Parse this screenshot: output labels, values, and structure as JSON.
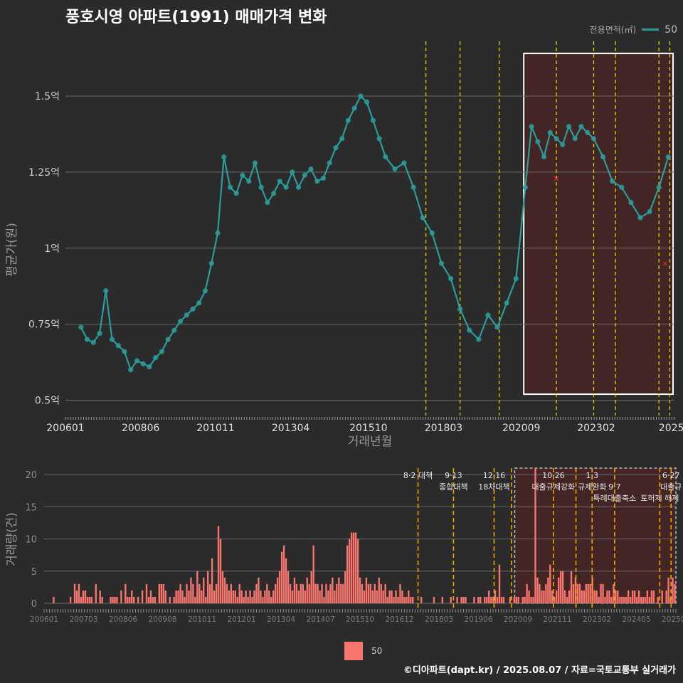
{
  "title": "풍호시영 아파트(1991) 매매가격 변화",
  "legend_top": {
    "title": "전용면적(㎡)",
    "value": "50"
  },
  "legend_bottom": {
    "value": "50"
  },
  "footer": "©디아파트(dapt.kr) / 2025.08.07 / 자료=국토교통부 실거래가",
  "colors": {
    "background": "#2b2b2b",
    "price": "#2a9d9b",
    "volume": "#f8766d",
    "policy_line": "#e6cf00",
    "policy_line_bottom": "#f0a500",
    "highlight_fill": "#5a2020",
    "grid": "#6a6a6a"
  },
  "chart_data": [
    {
      "type": "line",
      "ylabel": "평균가(원)",
      "xlabel": "거래년월",
      "ylim": [
        0.45,
        1.68
      ],
      "xlim": [
        2006.0,
        2025.6
      ],
      "yticks": [
        {
          "value": 0.5,
          "label": "0.5억"
        },
        {
          "value": 0.75,
          "label": "0.75억"
        },
        {
          "value": 1.0,
          "label": "1억"
        },
        {
          "value": 1.25,
          "label": "1.25억"
        },
        {
          "value": 1.5,
          "label": "1.5억"
        }
      ],
      "xticks": [
        {
          "value": 2006.0,
          "label": "200601"
        },
        {
          "value": 2008.42,
          "label": "200806"
        },
        {
          "value": 2010.83,
          "label": "201011"
        },
        {
          "value": 2013.25,
          "label": "201304"
        },
        {
          "value": 2015.75,
          "label": "201510"
        },
        {
          "value": 2018.17,
          "label": "201803"
        },
        {
          "value": 2020.67,
          "label": "202009"
        },
        {
          "value": 2023.08,
          "label": "202302"
        },
        {
          "value": 2025.5,
          "label": "2025"
        }
      ],
      "series": [
        {
          "name": "50",
          "x": [
            2006.5,
            2006.7,
            2006.9,
            2007.1,
            2007.3,
            2007.5,
            2007.7,
            2007.9,
            2008.1,
            2008.3,
            2008.5,
            2008.7,
            2008.9,
            2009.1,
            2009.3,
            2009.5,
            2009.7,
            2009.9,
            2010.1,
            2010.3,
            2010.5,
            2010.7,
            2010.9,
            2011.1,
            2011.3,
            2011.5,
            2011.7,
            2011.9,
            2012.1,
            2012.3,
            2012.5,
            2012.7,
            2012.9,
            2013.1,
            2013.3,
            2013.5,
            2013.7,
            2013.9,
            2014.1,
            2014.3,
            2014.5,
            2014.7,
            2014.9,
            2015.1,
            2015.3,
            2015.5,
            2015.7,
            2015.9,
            2016.1,
            2016.3,
            2016.6,
            2016.9,
            2017.2,
            2017.5,
            2017.8,
            2018.1,
            2018.4,
            2018.7,
            2019.0,
            2019.3,
            2019.6,
            2019.9,
            2020.2,
            2020.5,
            2020.8,
            2021.0,
            2021.2,
            2021.4,
            2021.6,
            2021.8,
            2022.0,
            2022.2,
            2022.4,
            2022.6,
            2022.8,
            2023.0,
            2023.3,
            2023.6,
            2023.9,
            2024.2,
            2024.5,
            2024.8,
            2025.1,
            2025.4
          ],
          "values": [
            0.74,
            0.7,
            0.69,
            0.72,
            0.86,
            0.7,
            0.68,
            0.66,
            0.6,
            0.63,
            0.62,
            0.61,
            0.64,
            0.66,
            0.7,
            0.73,
            0.76,
            0.78,
            0.8,
            0.82,
            0.86,
            0.95,
            1.05,
            1.3,
            1.2,
            1.18,
            1.24,
            1.22,
            1.28,
            1.2,
            1.15,
            1.18,
            1.22,
            1.2,
            1.25,
            1.2,
            1.24,
            1.26,
            1.22,
            1.23,
            1.28,
            1.33,
            1.36,
            1.42,
            1.46,
            1.5,
            1.48,
            1.42,
            1.36,
            1.3,
            1.26,
            1.28,
            1.2,
            1.1,
            1.05,
            0.95,
            0.9,
            0.8,
            0.73,
            0.7,
            0.78,
            0.74,
            0.82,
            0.9,
            1.2,
            1.4,
            1.35,
            1.3,
            1.38,
            1.36,
            1.34,
            1.4,
            1.36,
            1.4,
            1.38,
            1.36,
            1.3,
            1.22,
            1.2,
            1.15,
            1.1,
            1.12,
            1.2,
            1.3
          ]
        }
      ],
      "markers": [
        {
          "x": 2021.8,
          "value": 1.23
        },
        {
          "x": 2025.3,
          "value": 0.95
        }
      ],
      "policy_lines": [
        2017.6,
        2018.7,
        2019.96,
        2021.8,
        2023.0,
        2023.7,
        2025.1,
        2025.45
      ],
      "highlight_range": {
        "x": [
          2020.75,
          2025.6
        ],
        "y": [
          0.52,
          1.64
        ]
      }
    },
    {
      "type": "bar",
      "ylabel": "거래량(건)",
      "ylim": [
        0,
        21
      ],
      "yticks": [
        0,
        5,
        10,
        15,
        20
      ],
      "xticks": [
        "200601",
        "200703",
        "200806",
        "200908",
        "201011",
        "201201",
        "201304",
        "201407",
        "201510",
        "201612",
        "201803",
        "201906",
        "202009",
        "202111",
        "202302",
        "202405",
        "202507"
      ],
      "series": [
        {
          "name": "50",
          "values": [
            0,
            0,
            0,
            0,
            1,
            0,
            0,
            0,
            0,
            0,
            0,
            0,
            1,
            0,
            3,
            2,
            3,
            1,
            2,
            2,
            1,
            1,
            1,
            0,
            3,
            0,
            2,
            1,
            0,
            0,
            0,
            1,
            1,
            1,
            1,
            0,
            2,
            0,
            3,
            1,
            1,
            2,
            1,
            0,
            1,
            0,
            2,
            0,
            3,
            1,
            2,
            1,
            1,
            0,
            3,
            3,
            3,
            2,
            0,
            1,
            0,
            1,
            2,
            2,
            3,
            2,
            1,
            3,
            2,
            4,
            3,
            1,
            5,
            3,
            2,
            4,
            1,
            5,
            3,
            7,
            2,
            3,
            12,
            10,
            5,
            4,
            3,
            2,
            3,
            2,
            2,
            1,
            3,
            2,
            1,
            2,
            1,
            2,
            1,
            2,
            3,
            4,
            2,
            1,
            2,
            3,
            2,
            1,
            2,
            3,
            4,
            5,
            8,
            9,
            7,
            5,
            3,
            2,
            4,
            3,
            2,
            3,
            3,
            2,
            4,
            3,
            5,
            9,
            3,
            3,
            2,
            3,
            1,
            3,
            2,
            3,
            4,
            2,
            3,
            4,
            3,
            3,
            5,
            9,
            10,
            11,
            11,
            11,
            10,
            4,
            3,
            2,
            4,
            3,
            3,
            2,
            3,
            2,
            4,
            3,
            2,
            3,
            1,
            2,
            2,
            1,
            2,
            1,
            3,
            2,
            1,
            1,
            2,
            1,
            1,
            0,
            0,
            0,
            1,
            0,
            0,
            0,
            0,
            0,
            1,
            0,
            0,
            0,
            1,
            0,
            0,
            0,
            1,
            0,
            0,
            1,
            0,
            1,
            1,
            1,
            0,
            0,
            0,
            1,
            0,
            1,
            1,
            0,
            1,
            1,
            2,
            1,
            1,
            2,
            1,
            6,
            1,
            1,
            0,
            0,
            1,
            0,
            1,
            1,
            1,
            0,
            1,
            1,
            3,
            2,
            1,
            1,
            21,
            4,
            3,
            2,
            2,
            3,
            4,
            6,
            2,
            1,
            2,
            4,
            5,
            5,
            2,
            1,
            2,
            5,
            3,
            4,
            3,
            3,
            2,
            2,
            3,
            3,
            3,
            4,
            2,
            2,
            1,
            3,
            3,
            1,
            2,
            2,
            1,
            3,
            2,
            2,
            1,
            1,
            1,
            1,
            2,
            1,
            2,
            2,
            1,
            2,
            1,
            1,
            1,
            2,
            1,
            2,
            2,
            0,
            1,
            0,
            2,
            0,
            2,
            4,
            1,
            4,
            3
          ]
        }
      ],
      "policy_lines": [
        2017.6,
        2018.7,
        2019.96,
        2020.5,
        2021.8,
        2022.5,
        2023.0,
        2023.7,
        2025.1,
        2025.45
      ],
      "annotations": [
        {
          "x": 2017.6,
          "lines": [
            "8·2 대책"
          ]
        },
        {
          "x": 2018.7,
          "lines": [
            "9·13",
            "종합대책"
          ]
        },
        {
          "x": 2019.96,
          "lines": [
            "12·16",
            "18차대책"
          ]
        },
        {
          "x": 2021.8,
          "lines": [
            "10·26",
            "대출규제강화"
          ]
        },
        {
          "x": 2023.0,
          "lines": [
            "1·3",
            "규제완화"
          ]
        },
        {
          "x": 2023.7,
          "lines": [
            "",
            "9·7",
            "특례대출축소"
          ]
        },
        {
          "x": 2025.1,
          "lines": [
            "",
            "",
            "토허제 해제"
          ]
        },
        {
          "x": 2025.45,
          "lines": [
            "6·27",
            "대출규"
          ]
        }
      ],
      "highlight_range": {
        "x": [
          2020.6,
          2025.6
        ],
        "y": [
          0,
          21
        ]
      }
    }
  ]
}
